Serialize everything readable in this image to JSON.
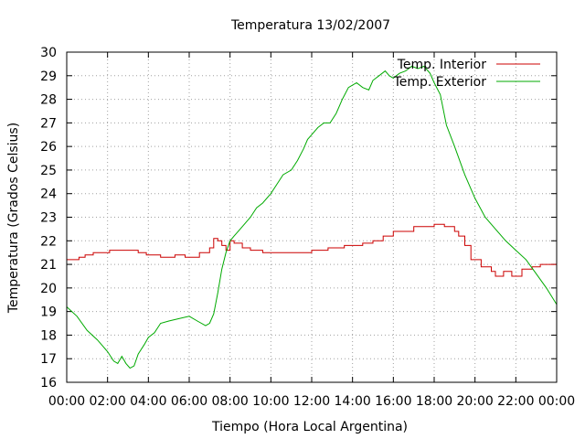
{
  "chart_data": {
    "type": "line",
    "title": "Temperatura 13/02/2007",
    "xlabel": "Tiempo (Hora Local Argentina)",
    "ylabel": "Temperatura (Grados Celsius)",
    "xlim": [
      0,
      24
    ],
    "ylim": [
      16,
      30
    ],
    "x_tick_values": [
      0,
      2,
      4,
      6,
      8,
      10,
      12,
      14,
      16,
      18,
      20,
      22,
      24
    ],
    "x_tick_labels": [
      "00:00",
      "02:00",
      "04:00",
      "06:00",
      "08:00",
      "10:00",
      "12:00",
      "14:00",
      "16:00",
      "18:00",
      "20:00",
      "22:00",
      "00:00"
    ],
    "y_ticks": [
      16,
      17,
      18,
      19,
      20,
      21,
      22,
      23,
      24,
      25,
      26,
      27,
      28,
      29,
      30
    ],
    "grid": true,
    "legend_position": "top-right",
    "series": [
      {
        "name": "Temp. Interior",
        "color": "#cc0000",
        "step": true,
        "x": [
          0,
          0.6,
          0.9,
          1.3,
          2.1,
          3.5,
          3.9,
          4.6,
          5.3,
          5.8,
          6.5,
          7.0,
          7.2,
          7.4,
          7.6,
          7.8,
          8.0,
          8.2,
          8.6,
          9.0,
          9.6,
          10.0,
          11.5,
          12.0,
          12.8,
          13.6,
          14.5,
          15.0,
          15.5,
          16.0,
          17.0,
          18.0,
          18.5,
          19.0,
          19.2,
          19.5,
          19.8,
          20.3,
          20.8,
          21.0,
          21.4,
          21.8,
          22.3,
          22.8,
          23.2,
          24.0
        ],
        "y": [
          21.2,
          21.3,
          21.4,
          21.5,
          21.6,
          21.5,
          21.4,
          21.3,
          21.4,
          21.3,
          21.5,
          21.7,
          22.1,
          22.0,
          21.8,
          21.6,
          22.0,
          21.9,
          21.7,
          21.6,
          21.5,
          21.5,
          21.5,
          21.6,
          21.7,
          21.8,
          21.9,
          22.0,
          22.2,
          22.4,
          22.6,
          22.7,
          22.6,
          22.4,
          22.2,
          21.8,
          21.2,
          20.9,
          20.7,
          20.5,
          20.7,
          20.5,
          20.8,
          20.9,
          21.0,
          21.2
        ]
      },
      {
        "name": "Temp. Exterior",
        "color": "#00aa00",
        "step": false,
        "x": [
          0,
          0.5,
          1.0,
          1.5,
          2.0,
          2.3,
          2.5,
          2.7,
          2.9,
          3.1,
          3.3,
          3.5,
          3.8,
          4.0,
          4.3,
          4.6,
          5.0,
          5.5,
          6.0,
          6.4,
          6.8,
          7.0,
          7.2,
          7.4,
          7.6,
          7.8,
          8.0,
          8.2,
          8.5,
          9.0,
          9.3,
          9.6,
          10.0,
          10.3,
          10.6,
          11.0,
          11.3,
          11.6,
          11.8,
          12.0,
          12.3,
          12.6,
          12.9,
          13.2,
          13.5,
          13.8,
          14.2,
          14.5,
          14.8,
          15.0,
          15.3,
          15.6,
          15.8,
          16.0,
          16.3,
          16.6,
          16.9,
          17.2,
          17.5,
          17.8,
          18.0,
          18.3,
          18.6,
          19.0,
          19.5,
          20.0,
          20.5,
          21.0,
          21.5,
          22.0,
          22.5,
          23.0,
          23.5,
          24.0
        ],
        "y": [
          19.2,
          18.8,
          18.2,
          17.8,
          17.3,
          16.9,
          16.8,
          17.1,
          16.8,
          16.6,
          16.7,
          17.2,
          17.6,
          17.9,
          18.1,
          18.5,
          18.6,
          18.7,
          18.8,
          18.6,
          18.4,
          18.5,
          18.9,
          19.8,
          20.8,
          21.5,
          22.0,
          22.2,
          22.5,
          23.0,
          23.4,
          23.6,
          24.0,
          24.4,
          24.8,
          25.0,
          25.4,
          25.9,
          26.3,
          26.5,
          26.8,
          27.0,
          27.0,
          27.4,
          28.0,
          28.5,
          28.7,
          28.5,
          28.4,
          28.8,
          29.0,
          29.2,
          29.0,
          28.9,
          29.1,
          29.2,
          29.4,
          29.3,
          29.4,
          29.1,
          28.7,
          28.2,
          26.9,
          26.0,
          24.8,
          23.8,
          23.0,
          22.5,
          22.0,
          21.6,
          21.2,
          20.6,
          20.0,
          19.3
        ]
      }
    ]
  }
}
